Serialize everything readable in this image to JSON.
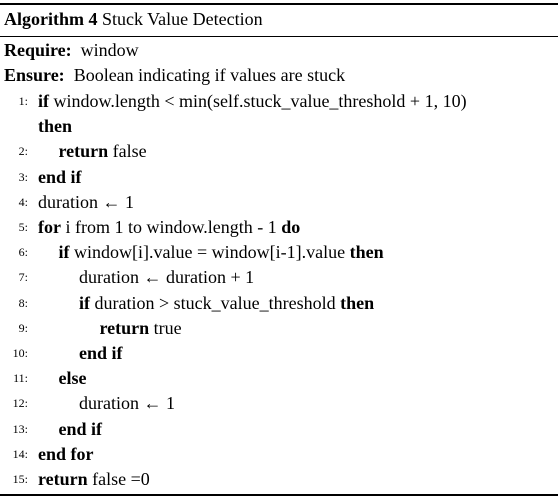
{
  "caption": {
    "label": "Algorithm 4",
    "title": "Stuck Value Detection"
  },
  "require": {
    "keyword": "Require:",
    "text": "window"
  },
  "ensure": {
    "keyword": "Ensure:",
    "text": "Boolean indicating if values are stuck"
  },
  "lines": [
    {
      "num": "1:",
      "parts": [
        {
          "kw": "if"
        },
        {
          "t": "window.length < min(self.stuck_value_threshold + 1, 10)"
        }
      ]
    },
    {
      "num": "",
      "parts": [
        {
          "kw": "then"
        }
      ]
    },
    {
      "num": "2:",
      "parts": [
        {
          "kw": "return"
        },
        {
          "t": "false"
        }
      ]
    },
    {
      "num": "3:",
      "parts": [
        {
          "kw": "end if"
        }
      ]
    },
    {
      "num": "4:",
      "parts": [
        {
          "t": "duration ← 1"
        }
      ]
    },
    {
      "num": "5:",
      "parts": [
        {
          "kw": "for"
        },
        {
          "t": "i from 1 to window.length - 1"
        },
        {
          "kw": "do"
        }
      ]
    },
    {
      "num": "6:",
      "parts": [
        {
          "kw": "if"
        },
        {
          "t": "window[i].value = window[i-1].value"
        },
        {
          "kw": "then"
        }
      ]
    },
    {
      "num": "7:",
      "parts": [
        {
          "t": "duration ← duration + 1"
        }
      ]
    },
    {
      "num": "8:",
      "parts": [
        {
          "kw": "if"
        },
        {
          "t": "duration > stuck_value_threshold"
        },
        {
          "kw": "then"
        }
      ]
    },
    {
      "num": "9:",
      "parts": [
        {
          "kw": "return"
        },
        {
          "t": "true"
        }
      ]
    },
    {
      "num": "10:",
      "parts": [
        {
          "kw": "end if"
        }
      ]
    },
    {
      "num": "11:",
      "parts": [
        {
          "kw": "else"
        }
      ]
    },
    {
      "num": "12:",
      "parts": [
        {
          "t": "duration ← 1"
        }
      ]
    },
    {
      "num": "13:",
      "parts": [
        {
          "kw": "end if"
        }
      ]
    },
    {
      "num": "14:",
      "parts": [
        {
          "kw": "end for"
        }
      ]
    },
    {
      "num": "15:",
      "parts": [
        {
          "kw": "return"
        },
        {
          "t": "false =0"
        }
      ]
    }
  ]
}
